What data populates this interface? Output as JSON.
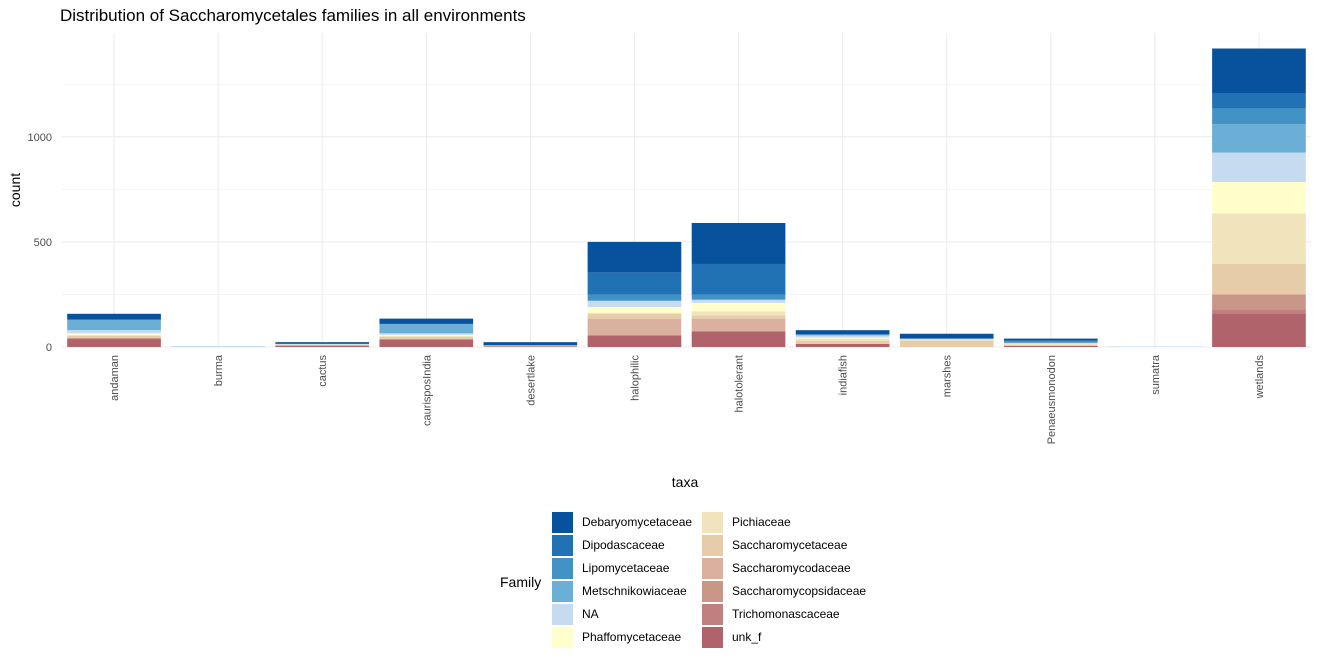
{
  "chart_data": {
    "type": "bar",
    "stacked": true,
    "title": "Distribution of Saccharomycetales families in all environments",
    "xlabel": "taxa",
    "ylabel": "count",
    "ylim": [
      0,
      1450
    ],
    "yticks": [
      0,
      500,
      1000
    ],
    "grid": true,
    "legend_title": "Family",
    "legend_position": "bottom",
    "categories": [
      "andaman",
      "burma",
      "cactus",
      "caurisposIndia",
      "desertlake",
      "halophilic",
      "halotolerant",
      "indiafish",
      "marshes",
      "Penaeusmonodon",
      "sumatra",
      "wetlands"
    ],
    "series": [
      {
        "name": "unk_f",
        "color": "#b0636a",
        "values": [
          38,
          0,
          5,
          35,
          3,
          55,
          75,
          15,
          0,
          5,
          0,
          160
        ]
      },
      {
        "name": "Trichomonascaceae",
        "color": "#c0807f",
        "values": [
          0,
          0,
          0,
          0,
          0,
          0,
          0,
          0,
          0,
          0,
          0,
          20
        ]
      },
      {
        "name": "Saccharomycopsidaceae",
        "color": "#c99787",
        "values": [
          5,
          0,
          2,
          3,
          0,
          0,
          0,
          0,
          0,
          0,
          0,
          70
        ]
      },
      {
        "name": "Saccharomycodaceae",
        "color": "#d9b19e",
        "values": [
          0,
          0,
          0,
          0,
          0,
          80,
          60,
          0,
          0,
          0,
          0,
          0
        ]
      },
      {
        "name": "Saccharomycetaceae",
        "color": "#e6cca9",
        "values": [
          10,
          0,
          3,
          10,
          2,
          25,
          15,
          15,
          30,
          5,
          0,
          145
        ]
      },
      {
        "name": "Pichiaceae",
        "color": "#f1e4bd",
        "values": [
          5,
          0,
          2,
          5,
          0,
          0,
          20,
          10,
          5,
          5,
          0,
          240
        ]
      },
      {
        "name": "Phaffomycetaceae",
        "color": "#ffffcc",
        "values": [
          7,
          0,
          0,
          5,
          0,
          30,
          40,
          5,
          0,
          0,
          0,
          150
        ]
      },
      {
        "name": "NA",
        "color": "#c6dbef",
        "values": [
          15,
          5,
          3,
          7,
          3,
          30,
          15,
          10,
          5,
          5,
          3,
          140
        ]
      },
      {
        "name": "Metschnikowiaceae",
        "color": "#6baed6",
        "values": [
          50,
          0,
          0,
          45,
          0,
          0,
          0,
          5,
          0,
          0,
          0,
          135
        ]
      },
      {
        "name": "Lipomycetaceae",
        "color": "#4292c6",
        "values": [
          0,
          0,
          0,
          0,
          0,
          30,
          25,
          0,
          0,
          10,
          0,
          75
        ]
      },
      {
        "name": "Dipodascaceae",
        "color": "#2171b5",
        "values": [
          0,
          0,
          0,
          0,
          0,
          105,
          145,
          0,
          0,
          0,
          0,
          70
        ]
      },
      {
        "name": "Debaryomycetaceae",
        "color": "#08519c",
        "values": [
          28,
          0,
          8,
          25,
          15,
          145,
          195,
          20,
          23,
          10,
          0,
          215
        ]
      }
    ],
    "legend_order": [
      "Debaryomycetaceae",
      "Dipodascaceae",
      "Lipomycetaceae",
      "Metschnikowiaceae",
      "NA",
      "Phaffomycetaceae",
      "Pichiaceae",
      "Saccharomycetaceae",
      "Saccharomycodaceae",
      "Saccharomycopsidaceae",
      "Trichomonascaceae",
      "unk_f"
    ]
  }
}
